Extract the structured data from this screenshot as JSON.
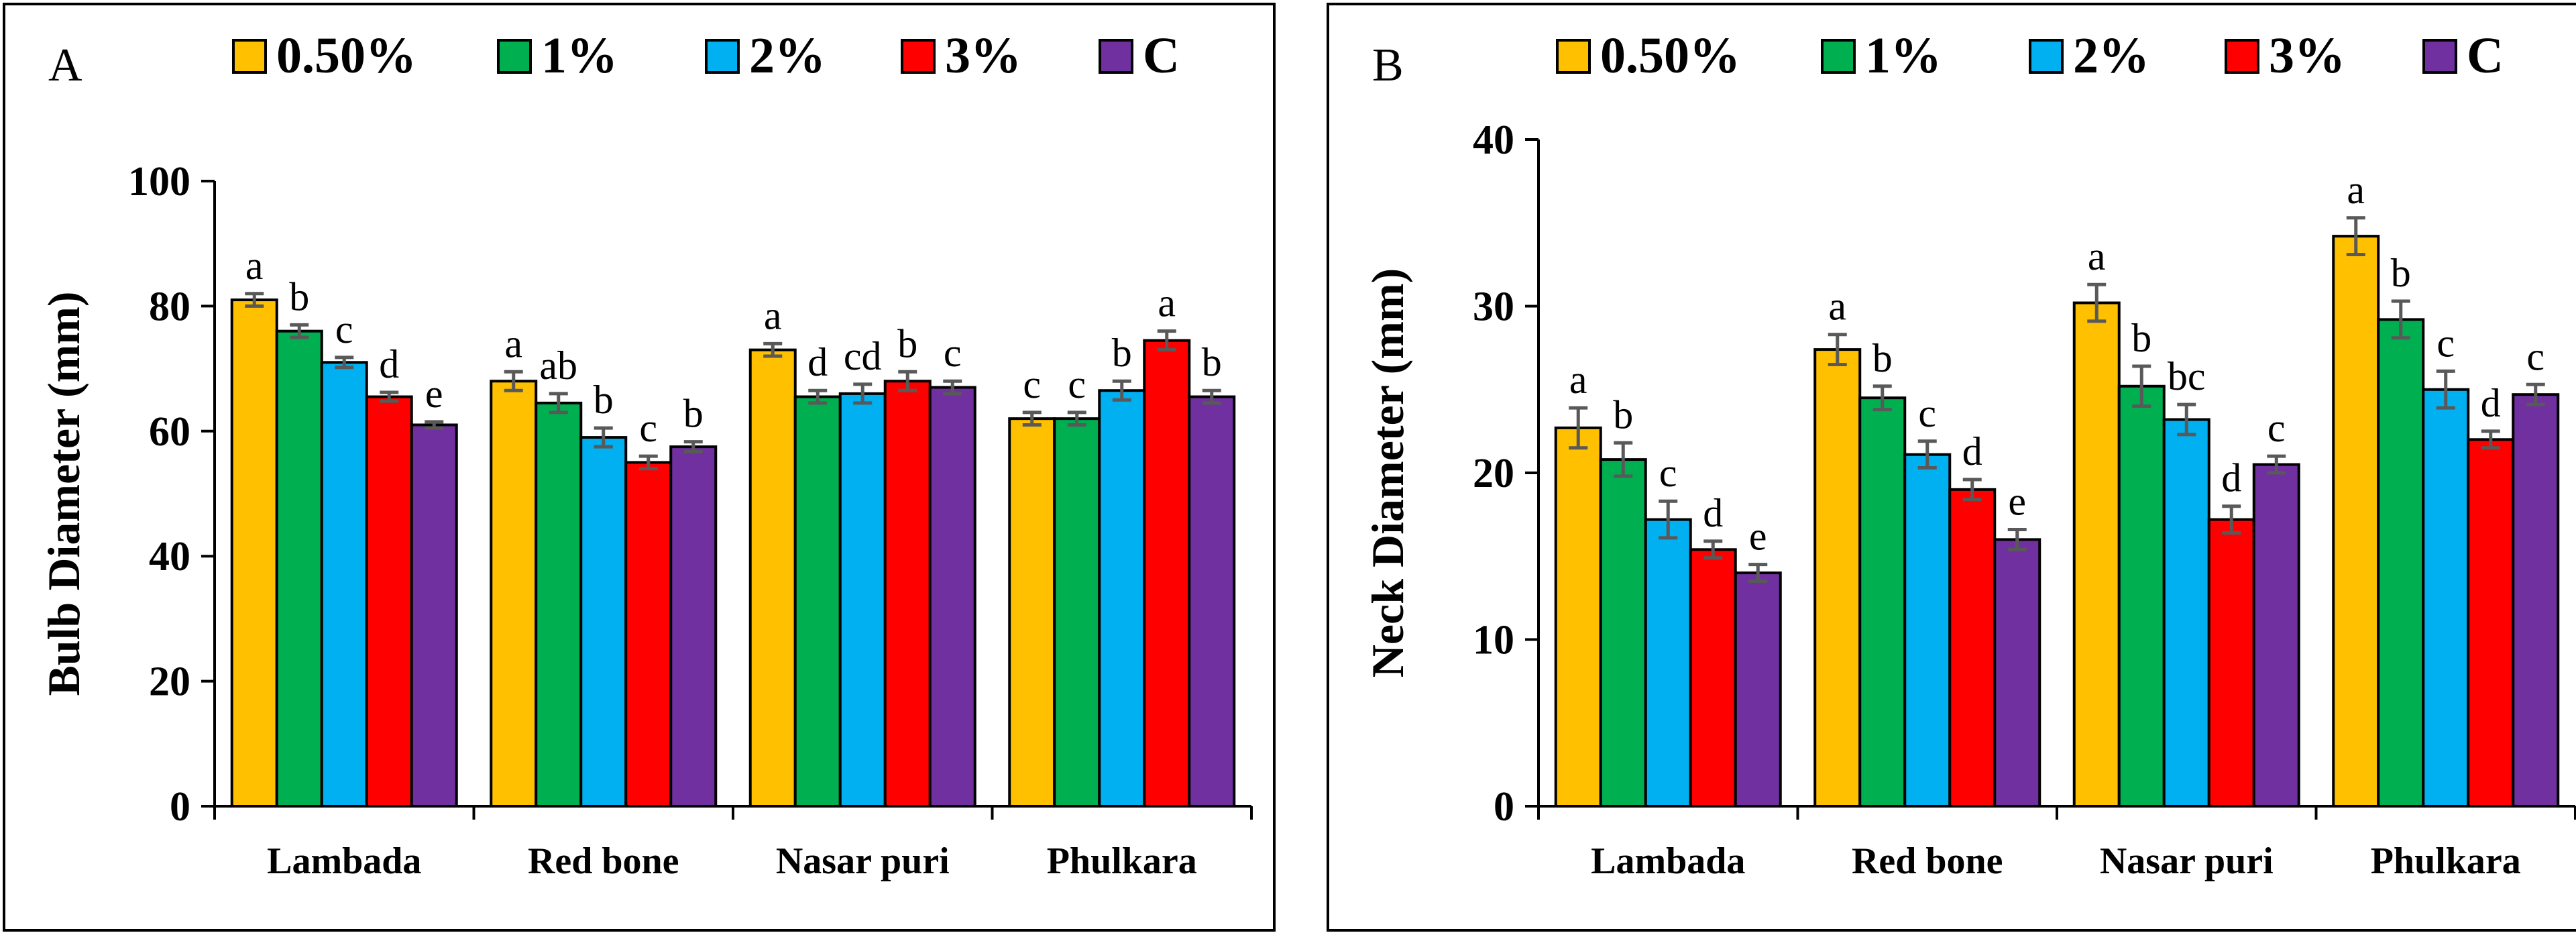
{
  "chart_data": [
    {
      "panel": "A",
      "type": "bar",
      "ylabel": "Bulb Diameter (mm)",
      "xlabel": "",
      "ylim": [
        0,
        100
      ],
      "yticks": [
        0,
        20,
        40,
        60,
        80,
        100
      ],
      "grid": false,
      "legend_position": "top",
      "categories": [
        "Lambada",
        "Red bone",
        "Nasar puri",
        "Phulkara"
      ],
      "series": [
        {
          "name": "0.50%",
          "color": "#FFC000",
          "values": [
            81,
            68,
            73,
            62
          ],
          "errors": [
            1,
            1.5,
            1,
            1
          ],
          "labels": [
            "a",
            "a",
            "a",
            "c"
          ]
        },
        {
          "name": "1%",
          "color": "#00B050",
          "values": [
            76,
            64.5,
            65.5,
            62
          ],
          "errors": [
            1,
            1.5,
            1,
            1
          ],
          "labels": [
            "b",
            "ab",
            "d",
            "c"
          ]
        },
        {
          "name": "2%",
          "color": "#00B0F0",
          "values": [
            71,
            59,
            66,
            66.5
          ],
          "errors": [
            0.8,
            1.5,
            1.5,
            1.5
          ],
          "labels": [
            "c",
            "b",
            "cd",
            "b"
          ]
        },
        {
          "name": "3%",
          "color": "#FF0000",
          "values": [
            65.5,
            55,
            68,
            74.5
          ],
          "errors": [
            0.7,
            1,
            1.5,
            1.5
          ],
          "labels": [
            "d",
            "c",
            "b",
            "a"
          ]
        },
        {
          "name": "C",
          "color": "#7030A0",
          "values": [
            61,
            57.5,
            67,
            65.5
          ],
          "errors": [
            0.5,
            0.8,
            1,
            1
          ],
          "labels": [
            "e",
            "b",
            "c",
            "b"
          ]
        }
      ]
    },
    {
      "panel": "B",
      "type": "bar",
      "ylabel": "Neck Diameter (mm)",
      "xlabel": "",
      "ylim": [
        0,
        40
      ],
      "yticks": [
        0,
        10,
        20,
        30,
        40
      ],
      "grid": false,
      "legend_position": "top",
      "categories": [
        "Lambada",
        "Red bone",
        "Nasar puri",
        "Phulkara"
      ],
      "series": [
        {
          "name": "0.50%",
          "color": "#FFC000",
          "values": [
            22.7,
            27.4,
            30.2,
            34.2
          ],
          "errors": [
            1.2,
            0.9,
            1.1,
            1.1
          ],
          "labels": [
            "a",
            "a",
            "a",
            "a"
          ]
        },
        {
          "name": "1%",
          "color": "#00B050",
          "values": [
            20.8,
            24.5,
            25.2,
            29.2
          ],
          "errors": [
            1,
            0.7,
            1.2,
            1.1
          ],
          "labels": [
            "b",
            "b",
            "b",
            "b"
          ]
        },
        {
          "name": "2%",
          "color": "#00B0F0",
          "values": [
            17.2,
            21.1,
            23.2,
            25
          ],
          "errors": [
            1.1,
            0.8,
            0.9,
            1.1
          ],
          "labels": [
            "c",
            "c",
            "bc",
            "c"
          ]
        },
        {
          "name": "3%",
          "color": "#FF0000",
          "values": [
            15.4,
            19,
            17.2,
            22
          ],
          "errors": [
            0.5,
            0.6,
            0.8,
            0.5
          ],
          "labels": [
            "d",
            "d",
            "d",
            "d"
          ]
        },
        {
          "name": "C",
          "color": "#7030A0",
          "values": [
            14,
            16,
            20.5,
            24.7
          ],
          "errors": [
            0.5,
            0.6,
            0.5,
            0.6
          ],
          "labels": [
            "e",
            "e",
            "c",
            "c"
          ]
        }
      ]
    }
  ]
}
